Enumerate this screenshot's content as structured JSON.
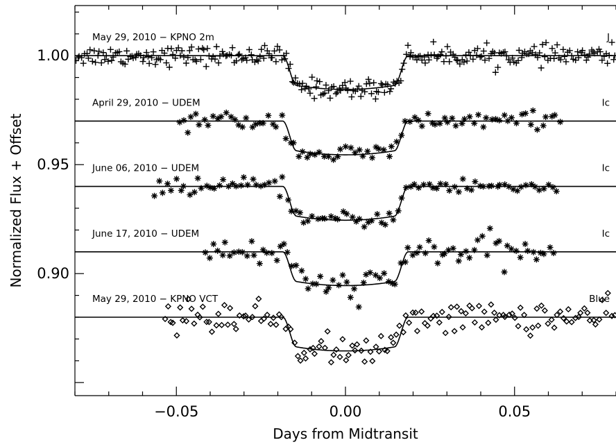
{
  "chart_data": {
    "type": "scatter",
    "xlabel": "Days from Midtransit",
    "ylabel": "Normalized Flux + Offset",
    "xlim": [
      -0.08,
      0.08
    ],
    "ylim": [
      0.844,
      1.023
    ],
    "x_ticks": [
      -0.05,
      0.0,
      0.05
    ],
    "x_tick_labels": [
      "−0.05",
      "0.00",
      "0.05"
    ],
    "y_ticks": [
      0.9,
      0.95,
      1.0
    ],
    "y_tick_labels": [
      "0.90",
      "0.95",
      "1.00"
    ],
    "transit": {
      "half_width_total": 0.0185,
      "half_width_flat": 0.0145,
      "depth": 0.0155
    },
    "series": [
      {
        "name": "May 29, 2010 − KPNO 2m",
        "band": "J",
        "marker": "plus",
        "baseline": 1.0,
        "x_range": [
          -0.08,
          0.08
        ],
        "n_points": 300,
        "scatter": 0.0022,
        "model_x_range": [
          -0.08,
          0.08
        ]
      },
      {
        "name": "April 29, 2010 − UDEM",
        "band": "Ic",
        "marker": "asterisk",
        "baseline": 0.97,
        "x_range": [
          -0.05,
          0.064
        ],
        "n_points": 90,
        "scatter": 0.0022,
        "model_x_range": [
          -0.08,
          0.08
        ]
      },
      {
        "name": "June 06, 2010 − UDEM",
        "band": "Ic",
        "marker": "asterisk",
        "baseline": 0.94,
        "x_range": [
          -0.057,
          0.063
        ],
        "n_points": 95,
        "scatter": 0.0018,
        "model_x_range": [
          -0.08,
          0.08
        ]
      },
      {
        "name": "June 17, 2010 − UDEM",
        "band": "Ic",
        "marker": "asterisk",
        "baseline": 0.91,
        "x_range": [
          -0.042,
          0.062
        ],
        "n_points": 85,
        "scatter": 0.0035,
        "model_x_range": [
          -0.08,
          0.08
        ]
      },
      {
        "name": "May 29, 2010 − KPNO VCT",
        "band": "Blue",
        "marker": "diamond",
        "baseline": 0.88,
        "x_range": [
          -0.054,
          0.08
        ],
        "n_points": 150,
        "scatter": 0.0035,
        "model_x_range": [
          -0.08,
          0.08
        ]
      }
    ]
  }
}
